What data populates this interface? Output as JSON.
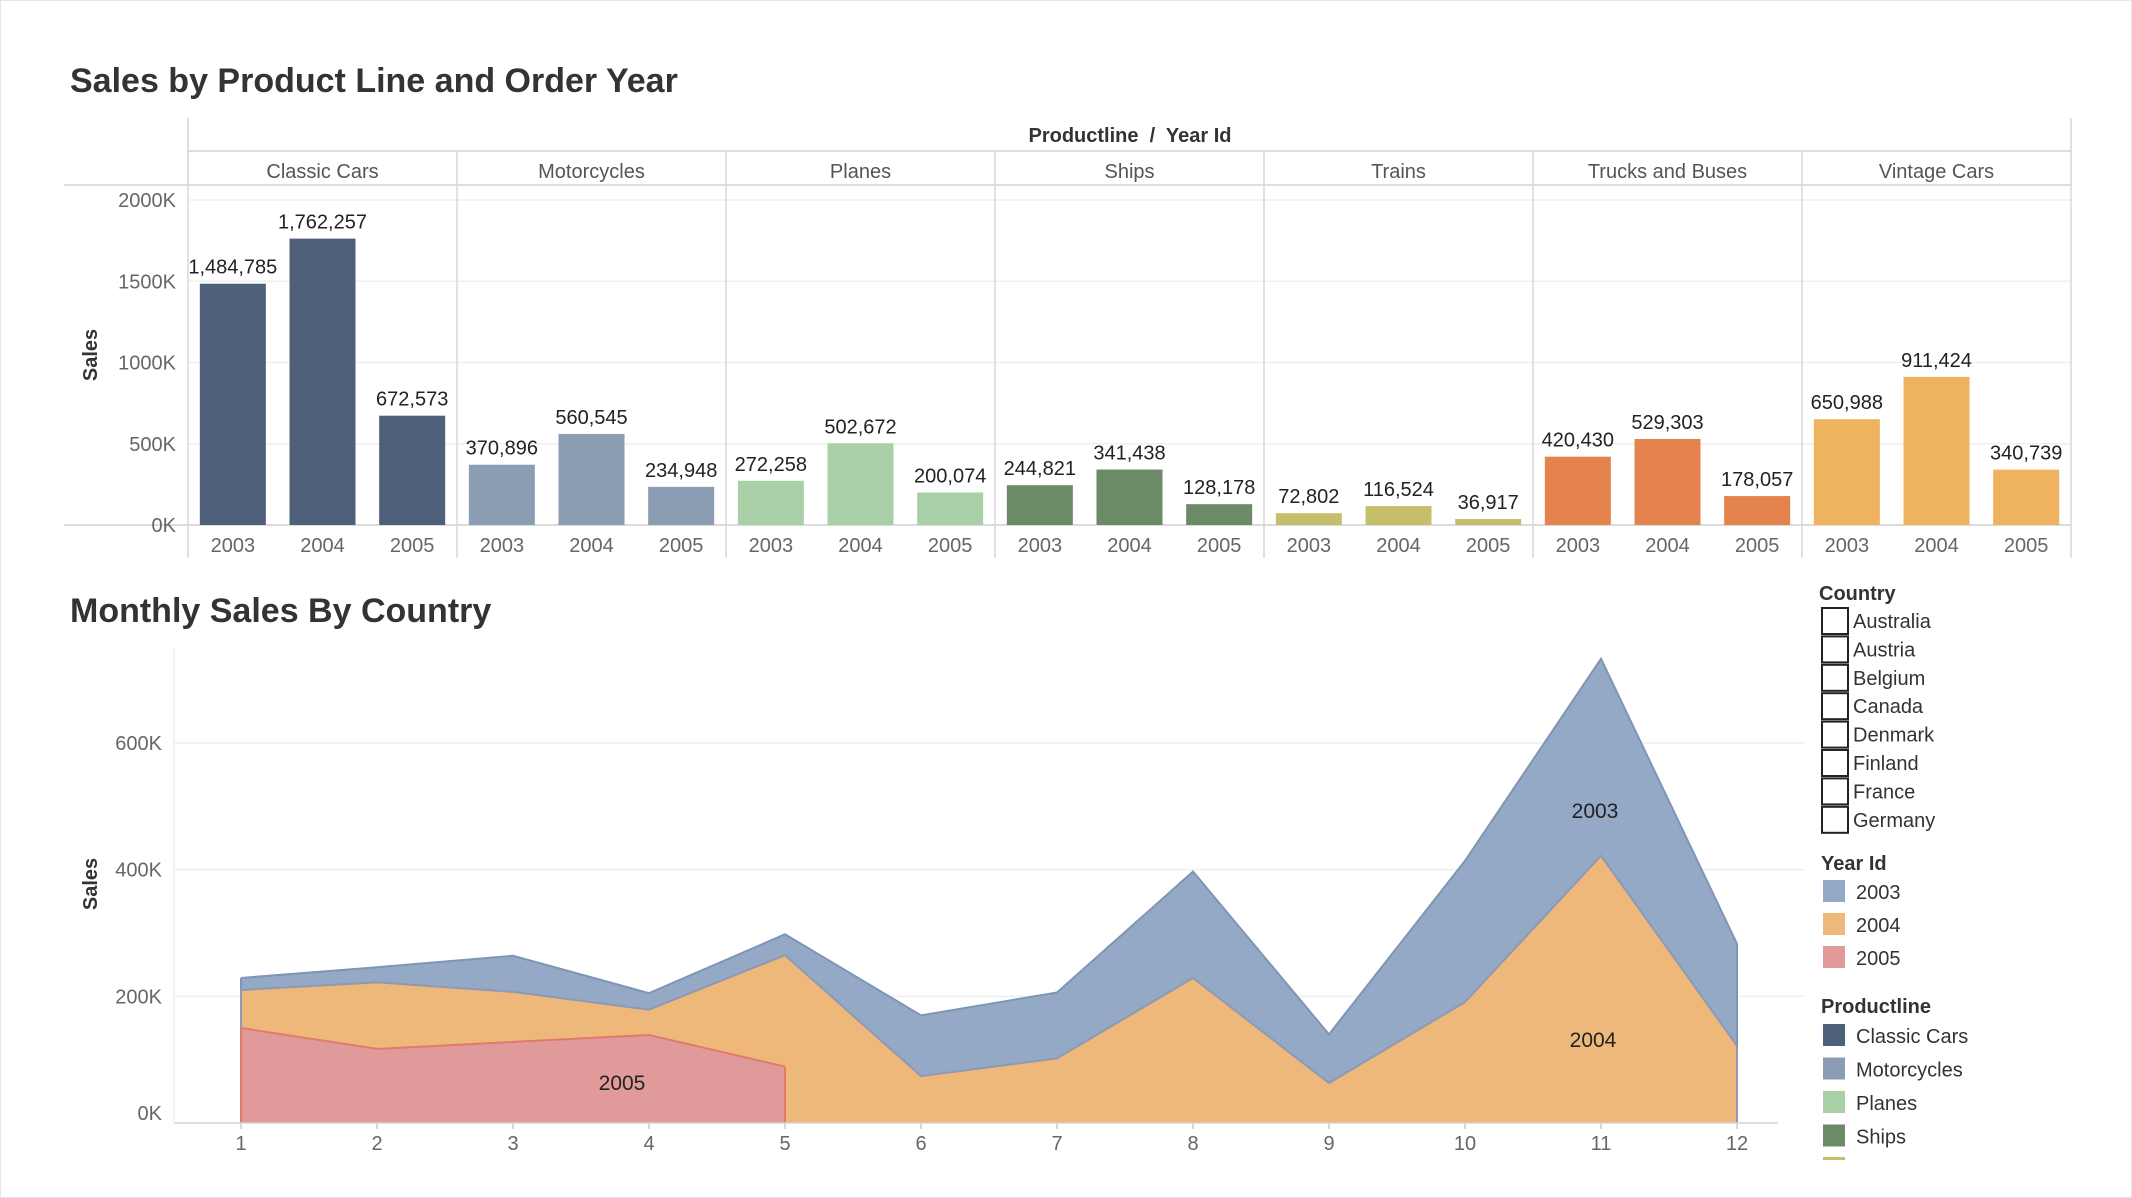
{
  "top_chart": {
    "title": "Sales by Product Line and Order Year",
    "header": "Productline  /  Year Id",
    "y_axis_label": "Sales",
    "y_ticks": [
      "0K",
      "500K",
      "1000K",
      "1500K",
      "2000K"
    ]
  },
  "bottom_chart": {
    "title": "Monthly Sales By Country",
    "y_axis_label": "Sales",
    "y_ticks": [
      "0K",
      "200K",
      "400K",
      "600K"
    ],
    "x_ticks": [
      "1",
      "2",
      "3",
      "4",
      "5",
      "6",
      "7",
      "8",
      "9",
      "10",
      "11",
      "12"
    ],
    "area_labels": {
      "y2003": "2003",
      "y2004": "2004",
      "y2005": "2005"
    }
  },
  "filters": {
    "country": {
      "title": "Country",
      "items": [
        "Australia",
        "Austria",
        "Belgium",
        "Canada",
        "Denmark",
        "Finland",
        "France",
        "Germany"
      ]
    }
  },
  "legends": {
    "year": {
      "title": "Year Id",
      "items": [
        {
          "label": "2003",
          "color": "#94a9c6"
        },
        {
          "label": "2004",
          "color": "#efb87b"
        },
        {
          "label": "2005",
          "color": "#e09a9a"
        }
      ]
    },
    "productline": {
      "title": "Productline",
      "items": [
        {
          "label": "Classic Cars",
          "color": "#4e6079"
        },
        {
          "label": "Motorcycles",
          "color": "#8a9db3"
        },
        {
          "label": "Planes",
          "color": "#a8cfa6"
        },
        {
          "label": "Ships",
          "color": "#6b8a66"
        }
      ]
    }
  },
  "chart_data": [
    {
      "type": "bar",
      "title": "Sales by Product Line and Order Year",
      "xlabel": "Productline / Year Id",
      "ylabel": "Sales",
      "ylim": [
        0,
        2000000
      ],
      "years": [
        "2003",
        "2004",
        "2005"
      ],
      "groups": [
        {
          "name": "Classic Cars",
          "color": "#4e6079",
          "values": [
            1484785,
            1762257,
            672573
          ],
          "labels": [
            "1,484,785",
            "1,762,257",
            "672,573"
          ]
        },
        {
          "name": "Motorcycles",
          "color": "#8a9db3",
          "values": [
            370896,
            560545,
            234948
          ],
          "labels": [
            "370,896",
            "560,545",
            "234,948"
          ]
        },
        {
          "name": "Planes",
          "color": "#a8cfa6",
          "values": [
            272258,
            502672,
            200074
          ],
          "labels": [
            "272,258",
            "502,672",
            "200,074"
          ]
        },
        {
          "name": "Ships",
          "color": "#6b8a66",
          "values": [
            244821,
            341438,
            128178
          ],
          "labels": [
            "244,821",
            "341,438",
            "128,178"
          ]
        },
        {
          "name": "Trains",
          "color": "#c5bf6c",
          "values": [
            72802,
            116524,
            36917
          ],
          "labels": [
            "72,802",
            "116,524",
            "36,917"
          ]
        },
        {
          "name": "Trucks and Buses",
          "color": "#e5834f",
          "values": [
            420430,
            529303,
            178057
          ],
          "labels": [
            "420,430",
            "529,303",
            "178,057"
          ]
        },
        {
          "name": "Vintage Cars",
          "color": "#efb25f",
          "values": [
            650988,
            911424,
            340739
          ],
          "labels": [
            "650,988",
            "911,424",
            "340,739"
          ]
        }
      ]
    },
    {
      "type": "area",
      "title": "Monthly Sales By Country",
      "xlabel": "",
      "ylabel": "Sales",
      "ylim": [
        0,
        750000
      ],
      "x": [
        1,
        2,
        3,
        4,
        5,
        6,
        7,
        8,
        9,
        10,
        11,
        12
      ],
      "stacked": false,
      "series": [
        {
          "name": "2003",
          "color": "#94a9c6",
          "edge": "#7f95b6",
          "x": [
            1,
            2,
            3,
            4,
            5,
            6,
            7,
            8,
            9,
            10,
            11,
            12
          ],
          "values": [
            229000,
            246000,
            264000,
            205000,
            298000,
            170000,
            206000,
            397000,
            140000,
            414000,
            733000,
            283000
          ]
        },
        {
          "name": "2004",
          "color": "#efb87b",
          "edge": "#8f99b3",
          "x": [
            1,
            2,
            3,
            4,
            5,
            6,
            7,
            8,
            9,
            10,
            11,
            12
          ],
          "values": [
            210000,
            222000,
            207000,
            179000,
            265000,
            74000,
            102000,
            229000,
            63000,
            191000,
            422000,
            122000
          ]
        },
        {
          "name": "2005",
          "color": "#e09a9a",
          "edge": "#e27a6b",
          "x": [
            1,
            2,
            3,
            4,
            5
          ],
          "values": [
            150000,
            117000,
            128000,
            139000,
            89000
          ]
        }
      ]
    }
  ]
}
